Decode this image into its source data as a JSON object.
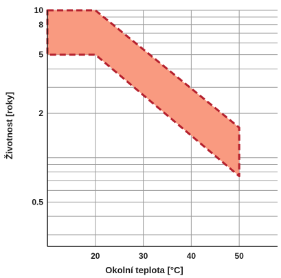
{
  "chart_data": {
    "type": "area",
    "title": "",
    "xlabel": "Okolní teplota [°C]",
    "ylabel": "Životnost [roky]",
    "xlim": [
      10,
      58
    ],
    "ylim": [
      0.25,
      10
    ],
    "y_scale": "log",
    "x_ticks": [
      20,
      30,
      40,
      50
    ],
    "x_tick_labels": [
      "20",
      "30",
      "40",
      "50"
    ],
    "y_ticks": [
      0.5,
      2,
      5,
      8,
      10
    ],
    "y_tick_labels": [
      "0.5",
      "2",
      "5",
      "8",
      "10"
    ],
    "y_gridlines": [
      0.3,
      0.4,
      0.5,
      0.6,
      0.7,
      0.8,
      0.9,
      1,
      2,
      3,
      4,
      5,
      6,
      7,
      8,
      9,
      10
    ],
    "grid": true,
    "band": {
      "upper": {
        "x": [
          10,
          20,
          50
        ],
        "y": [
          10,
          10,
          1.6
        ]
      },
      "lower": {
        "x": [
          10,
          20,
          50
        ],
        "y": [
          5,
          5,
          0.75
        ]
      }
    },
    "colors": {
      "fill": "#f99a80",
      "border": "#b5202d",
      "grid": "#9a9a9a",
      "axis": "#1a1a1a"
    }
  }
}
